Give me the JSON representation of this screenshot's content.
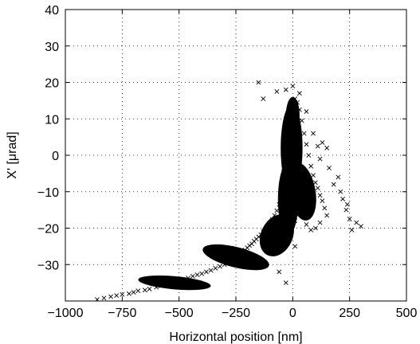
{
  "chart_data": {
    "type": "scatter",
    "title": "",
    "xlabel": "Horizontal position [nm]",
    "ylabel": "X' [μrad]",
    "xlim": [
      -1000,
      500
    ],
    "ylim": [
      -40,
      40
    ],
    "xticks": [
      -1000,
      -750,
      -500,
      -250,
      0,
      250,
      500
    ],
    "xtick_labels": [
      "−1000",
      "−750",
      "−500",
      "−250",
      "0",
      "250",
      "500"
    ],
    "yticks": [
      -30,
      -20,
      -10,
      0,
      10,
      20,
      30,
      40
    ],
    "ytick_labels": [
      "−30",
      "−20",
      "−10",
      "0",
      "10",
      "20",
      "30",
      "40"
    ],
    "grid": true,
    "marker": "x",
    "marker_color": "#000000",
    "series": [
      {
        "points": [
          [
            -860,
            -39.6
          ],
          [
            -830,
            -39.2
          ],
          [
            -800,
            -38.8
          ],
          [
            -775,
            -38.5
          ],
          [
            -750,
            -38.2
          ],
          [
            -720,
            -38.0
          ],
          [
            -700,
            -37.6
          ],
          [
            -680,
            -37.2
          ],
          [
            -650,
            -37.0
          ],
          [
            -630,
            -36.7
          ],
          [
            -600,
            -36.2
          ],
          [
            -580,
            -35.8
          ],
          [
            -560,
            -35.6
          ],
          [
            -540,
            -35.2
          ],
          [
            -520,
            -34.8
          ],
          [
            -500,
            -34.5
          ],
          [
            -480,
            -34.1
          ],
          [
            -460,
            -33.7
          ],
          [
            -440,
            -33.2
          ],
          [
            -420,
            -32.8
          ],
          [
            -400,
            -32.5
          ],
          [
            -380,
            -32.0
          ],
          [
            -360,
            -31.6
          ],
          [
            -340,
            -31.0
          ],
          [
            -320,
            -30.5
          ],
          [
            -300,
            -30.0
          ],
          [
            -280,
            -29.3
          ],
          [
            -270,
            -28.9
          ],
          [
            -260,
            -28.5
          ],
          [
            -250,
            -28.0
          ],
          [
            -240,
            -27.6
          ],
          [
            -230,
            -27.0
          ],
          [
            -220,
            -26.5
          ],
          [
            -210,
            -26.0
          ],
          [
            -200,
            -25.4
          ],
          [
            -190,
            -24.8
          ],
          [
            -180,
            -24.3
          ],
          [
            -170,
            -23.6
          ],
          [
            -160,
            -23.0
          ],
          [
            -150,
            -22.4
          ],
          [
            -140,
            -21.8
          ],
          [
            -130,
            -21.0
          ],
          [
            -120,
            -20.3
          ],
          [
            -110,
            -19.5
          ],
          [
            -100,
            -18.6
          ],
          [
            -90,
            -17.6
          ],
          [
            -80,
            -16.5
          ],
          [
            -70,
            -15.2
          ],
          [
            -60,
            -13.5
          ],
          [
            -50,
            -11.5
          ],
          [
            -45,
            -9.0
          ],
          [
            -40,
            -6.5
          ],
          [
            -40,
            -3.5
          ],
          [
            -35,
            0.0
          ],
          [
            -35,
            3.5
          ],
          [
            -30,
            6.5
          ],
          [
            -20,
            9.5
          ],
          [
            -10,
            12.0
          ],
          [
            0,
            14.0
          ],
          [
            10,
            15.5
          ],
          [
            20,
            14.5
          ],
          [
            30,
            12.5
          ],
          [
            40,
            9.5
          ],
          [
            50,
            6.0
          ],
          [
            60,
            3.0
          ],
          [
            70,
            0.0
          ],
          [
            80,
            -3.0
          ],
          [
            90,
            -5.5
          ],
          [
            100,
            -7.5
          ],
          [
            110,
            -9.0
          ],
          [
            120,
            -11.0
          ],
          [
            130,
            -12.5
          ],
          [
            140,
            -14.5
          ],
          [
            150,
            -16.5
          ],
          [
            120,
            -18.5
          ],
          [
            100,
            -20.0
          ],
          [
            80,
            -20.5
          ],
          [
            60,
            -19.0
          ],
          [
            40,
            -16.5
          ],
          [
            20,
            -13.5
          ],
          [
            0,
            -10.5
          ],
          [
            -20,
            -7.0
          ],
          [
            -150,
            20.0
          ],
          [
            -130,
            15.5
          ],
          [
            -70,
            17.5
          ],
          [
            -30,
            18.0
          ],
          [
            0,
            19.0
          ],
          [
            30,
            17.0
          ],
          [
            60,
            12.0
          ],
          [
            90,
            6.0
          ],
          [
            110,
            2.5
          ],
          [
            120,
            -1.0
          ],
          [
            180,
            -8.0
          ],
          [
            200,
            -6.0
          ],
          [
            210,
            -10.0
          ],
          [
            220,
            -12.0
          ],
          [
            240,
            -13.5
          ],
          [
            250,
            -17.5
          ],
          [
            260,
            -20.5
          ],
          [
            280,
            -18.5
          ],
          [
            300,
            -19.5
          ],
          [
            235,
            -15.0
          ],
          [
            -30,
            -35.0
          ],
          [
            -60,
            -32.0
          ],
          [
            10,
            -25.0
          ],
          [
            130,
            3.5
          ],
          [
            150,
            2.0
          ],
          [
            160,
            -3.5
          ],
          [
            -10,
            9.0
          ],
          [
            -40,
            1.0
          ],
          [
            -25,
            -1.5
          ],
          [
            0,
            5.0
          ],
          [
            20,
            0.0
          ],
          [
            -15,
            -10.0
          ],
          [
            40,
            -7.0
          ],
          [
            60,
            -10.0
          ],
          [
            90,
            -14.0
          ],
          [
            70,
            -15.5
          ],
          [
            10,
            -18.0
          ],
          [
            -20,
            -20.0
          ]
        ]
      }
    ]
  }
}
